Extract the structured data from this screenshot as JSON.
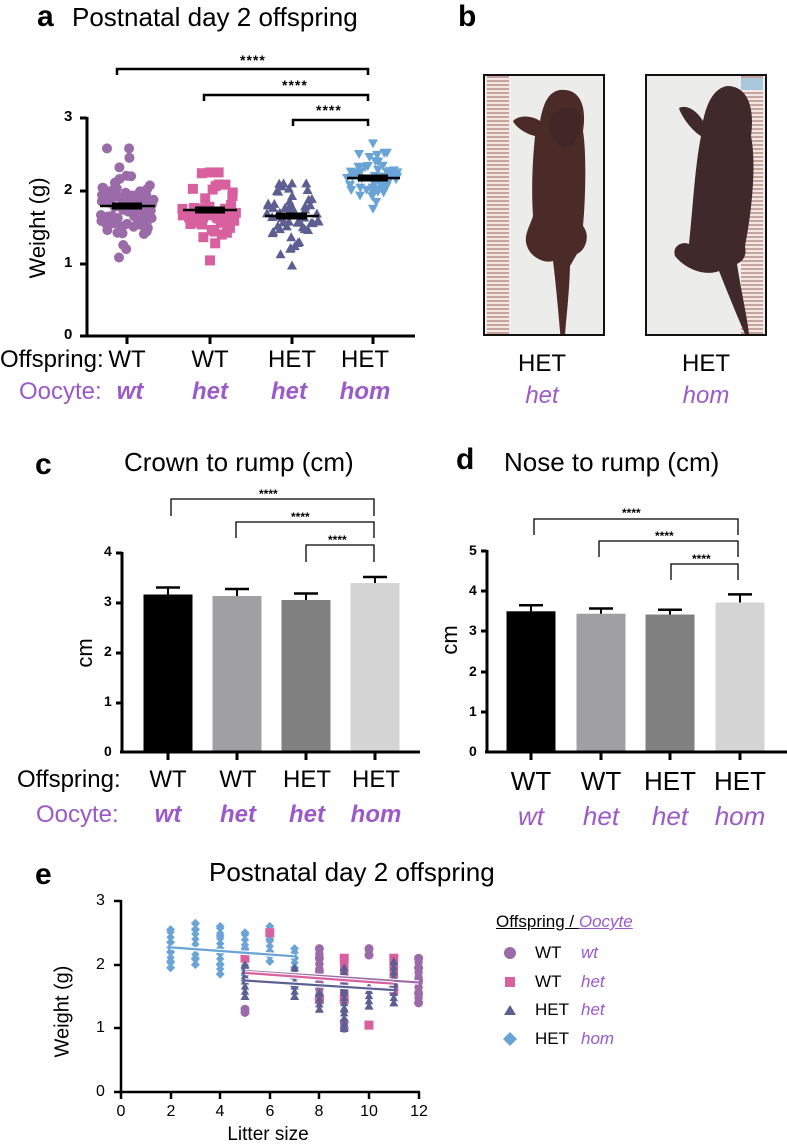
{
  "colors": {
    "wt_wt": "#9b6aa8",
    "wt_het": "#d9609f",
    "het_het": "#5b5f91",
    "het_hom": "#6aa3d5",
    "oocyte_text": "#9b59c9",
    "bar_wt_wt": "#000000",
    "bar_wt_het": "#a0a0a3",
    "bar_het_het": "#808080",
    "bar_het_hom": "#d4d4d4"
  },
  "panel_a": {
    "letter": "a",
    "title": "Postnatal day 2 offspring",
    "ylabel": "Weight (g)",
    "yticks": [
      "0",
      "1",
      "2",
      "3"
    ],
    "row1_label": "Offspring:",
    "row2_label": "Oocyte:",
    "offspring": [
      "WT",
      "WT",
      "HET",
      "HET"
    ],
    "oocyte": [
      "wt",
      "het",
      "het",
      "hom"
    ],
    "significance": [
      "****",
      "****",
      "****"
    ]
  },
  "panel_b": {
    "letter": "b",
    "photos": [
      {
        "offspring": "HET",
        "oocyte": "het"
      },
      {
        "offspring": "HET",
        "oocyte": "hom"
      }
    ]
  },
  "panel_c": {
    "letter": "c",
    "title": "Crown to rump (cm)",
    "ylabel": "cm",
    "yticks": [
      "0",
      "1",
      "2",
      "3",
      "4"
    ],
    "row1_label": "Offspring:",
    "row2_label": "Oocyte:",
    "offspring": [
      "WT",
      "WT",
      "HET",
      "HET"
    ],
    "oocyte": [
      "wt",
      "het",
      "het",
      "hom"
    ],
    "significance": [
      "****",
      "****",
      "****"
    ]
  },
  "panel_d": {
    "letter": "d",
    "title": "Nose to rump (cm)",
    "ylabel": "cm",
    "yticks": [
      "0",
      "1",
      "2",
      "3",
      "4",
      "5"
    ],
    "offspring": [
      "WT",
      "WT",
      "HET",
      "HET"
    ],
    "oocyte": [
      "wt",
      "het",
      "het",
      "hom"
    ],
    "significance": [
      "****",
      "****",
      "****"
    ]
  },
  "panel_e": {
    "letter": "e",
    "title": "Postnatal day 2 offspring",
    "ylabel": "Weight (g)",
    "xlabel": "Litter size",
    "xticks": [
      "0",
      "2",
      "4",
      "6",
      "8",
      "10",
      "12"
    ],
    "yticks": [
      "0",
      "1",
      "2",
      "3"
    ],
    "legend": {
      "title_offspring": "Offspring / ",
      "title_oocyte": "Oocyte",
      "items": [
        {
          "marker": "circle",
          "offspring": "WT",
          "oocyte": "wt"
        },
        {
          "marker": "square",
          "offspring": "WT",
          "oocyte": "het"
        },
        {
          "marker": "triangle",
          "offspring": "HET",
          "oocyte": "het"
        },
        {
          "marker": "diamond",
          "offspring": "HET",
          "oocyte": "hom"
        }
      ]
    }
  },
  "chart_data": [
    {
      "panel": "a",
      "type": "scatter",
      "title": "Postnatal day 2 offspring",
      "xlabel": "",
      "ylabel": "Weight (g)",
      "ylim": [
        0,
        3
      ],
      "categories": [
        "WT / wt",
        "WT / het",
        "HET / het",
        "HET / hom"
      ],
      "series": [
        {
          "name": "WT / wt",
          "marker": "circle",
          "mean": 1.79,
          "sem": 0.03,
          "min": 1.08,
          "max": 2.58
        },
        {
          "name": "WT / het",
          "marker": "square",
          "mean": 1.75,
          "sem": 0.04,
          "min": 1.04,
          "max": 2.25
        },
        {
          "name": "HET / het",
          "marker": "triangle",
          "mean": 1.67,
          "sem": 0.03,
          "min": 0.97,
          "max": 2.1
        },
        {
          "name": "HET / hom",
          "marker": "inverted-triangle",
          "mean": 2.19,
          "sem": 0.03,
          "min": 1.75,
          "max": 2.65
        }
      ],
      "annotations": [
        "**** WT/wt vs HET/hom",
        "**** WT/het vs HET/hom",
        "**** HET/het vs HET/hom"
      ]
    },
    {
      "panel": "c",
      "type": "bar",
      "title": "Crown to rump (cm)",
      "xlabel": "",
      "ylabel": "cm",
      "ylim": [
        0,
        4
      ],
      "categories": [
        "WT / wt",
        "WT / het",
        "HET / het",
        "HET / hom"
      ],
      "values": [
        3.15,
        3.12,
        3.04,
        3.38
      ],
      "error": [
        0.14,
        0.14,
        0.13,
        0.12
      ],
      "annotations": [
        "****",
        "****",
        "****"
      ]
    },
    {
      "panel": "d",
      "type": "bar",
      "title": "Nose to rump (cm)",
      "xlabel": "",
      "ylabel": "cm",
      "ylim": [
        0,
        5
      ],
      "categories": [
        "WT / wt",
        "WT / het",
        "HET / het",
        "HET / hom"
      ],
      "values": [
        3.5,
        3.44,
        3.42,
        3.72
      ],
      "error": [
        0.15,
        0.13,
        0.12,
        0.2
      ],
      "annotations": [
        "****",
        "****",
        "****"
      ]
    },
    {
      "panel": "e",
      "type": "scatter",
      "title": "Postnatal day 2 offspring",
      "xlabel": "Litter size",
      "ylabel": "Weight (g)",
      "xlim": [
        0,
        12
      ],
      "ylim": [
        0,
        3
      ],
      "series": [
        {
          "name": "WT wt",
          "marker": "circle",
          "x": [
            5,
            5,
            8,
            8,
            8,
            8,
            8,
            9,
            9,
            10,
            10,
            11,
            11,
            12,
            12,
            12,
            12,
            12
          ],
          "y": [
            1.3,
            1.25,
            2.25,
            2.1,
            1.9,
            1.7,
            1.45,
            1.1,
            1.0,
            2.25,
            2.15,
            1.95,
            1.6,
            2.1,
            1.95,
            1.75,
            1.55,
            1.4
          ],
          "fit": {
            "x": [
              5,
              12
            ],
            "y": [
              1.9,
              1.72
            ]
          }
        },
        {
          "name": "WT het",
          "marker": "square",
          "x": [
            5,
            6,
            8,
            9,
            9,
            10,
            11,
            11
          ],
          "y": [
            2.1,
            2.5,
            1.45,
            2.1,
            1.45,
            1.05,
            2.1,
            1.6
          ],
          "fit": {
            "x": [
              5,
              11
            ],
            "y": [
              1.87,
              1.7
            ]
          }
        },
        {
          "name": "HET het",
          "marker": "triangle",
          "x": [
            5,
            5,
            7,
            7,
            7,
            8,
            8,
            9,
            9,
            9,
            9,
            10,
            10,
            11,
            11,
            11
          ],
          "y": [
            2.0,
            1.5,
            1.95,
            1.7,
            1.5,
            1.55,
            1.3,
            1.95,
            1.6,
            1.3,
            1.0,
            1.65,
            1.35,
            2.05,
            1.7,
            1.4
          ],
          "fit": {
            "x": [
              5,
              11
            ],
            "y": [
              1.75,
              1.6
            ]
          }
        },
        {
          "name": "HET hom",
          "marker": "diamond",
          "x": [
            2,
            2,
            2,
            2,
            2,
            3,
            3,
            3,
            3,
            4,
            4,
            4,
            4,
            4,
            5,
            5,
            5,
            6,
            6,
            6,
            6,
            7,
            7,
            7
          ],
          "y": [
            2.55,
            2.35,
            2.2,
            2.05,
            1.95,
            2.65,
            2.55,
            2.1,
            2.0,
            2.6,
            2.45,
            2.25,
            2.0,
            1.85,
            2.5,
            2.25,
            1.75,
            2.6,
            2.4,
            2.2,
            2.05,
            2.25,
            2.1,
            1.95
          ],
          "fit": {
            "x": [
              2,
              7
            ],
            "y": [
              2.27,
              2.13
            ]
          }
        }
      ],
      "legend_position": "right"
    }
  ]
}
